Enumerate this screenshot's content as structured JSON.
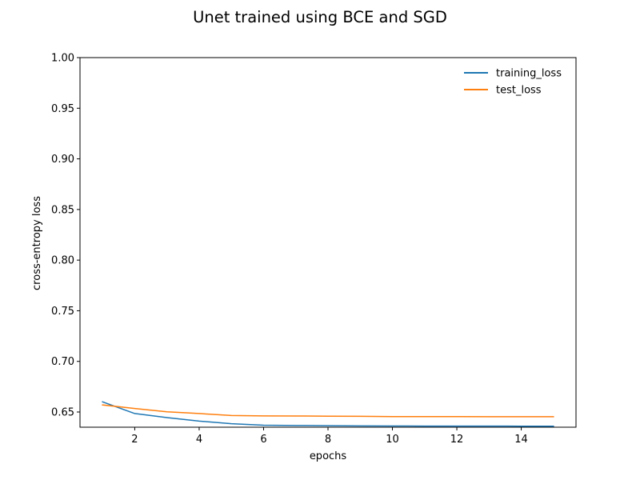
{
  "chart_data": {
    "type": "line",
    "title": "Unet trained using BCE and SGD",
    "xlabel": "epochs",
    "ylabel": "cross-entropy loss",
    "xlim": [
      0.3,
      15.7
    ],
    "ylim": [
      0.635,
      1.0
    ],
    "xticks": [
      2,
      4,
      6,
      8,
      10,
      12,
      14
    ],
    "yticks": [
      0.65,
      0.7,
      0.75,
      0.8,
      0.85,
      0.9,
      0.95,
      1.0
    ],
    "ytick_labels": [
      "0.65",
      "0.70",
      "0.75",
      "0.80",
      "0.85",
      "0.90",
      "0.95",
      "1.00"
    ],
    "grid": false,
    "legend_position": "top-right",
    "x": [
      1,
      2,
      3,
      4,
      5,
      6,
      7,
      8,
      9,
      10,
      11,
      12,
      13,
      14,
      15
    ],
    "series": [
      {
        "name": "training_loss",
        "color": "#1f77b4",
        "values": [
          0.66,
          0.6485,
          0.6445,
          0.641,
          0.6385,
          0.637,
          0.6367,
          0.6365,
          0.6363,
          0.6362,
          0.6361,
          0.6361,
          0.6361,
          0.636,
          0.636
        ]
      },
      {
        "name": "test_loss",
        "color": "#ff7f0e",
        "values": [
          0.657,
          0.6535,
          0.6502,
          0.6485,
          0.6466,
          0.6462,
          0.6461,
          0.6459,
          0.6458,
          0.6455,
          0.6455,
          0.6455,
          0.6454,
          0.6454,
          0.6454
        ]
      }
    ]
  }
}
